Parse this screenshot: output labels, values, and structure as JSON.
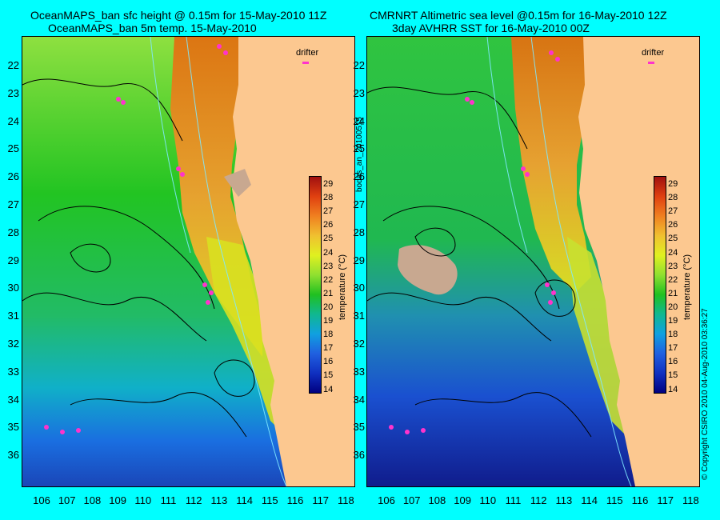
{
  "titles": {
    "left_line1": "OceanMAPS_ban sfc height @ 0.15m for 15-May-2010 11Z",
    "left_line2": "OceanMAPS_ban 5m temp. 15-May-2010",
    "right_line1": "CMRNRT Altimetric sea level  @0.15m  for 16-May-2010 12Z",
    "right_line2": "3day AVHRR SST for 16-May-2010 00Z"
  },
  "latitudes": [
    "22",
    "23",
    "24",
    "25",
    "26",
    "27",
    "28",
    "29",
    "30",
    "31",
    "32",
    "33",
    "34",
    "35",
    "36"
  ],
  "longitudes": [
    "106",
    "107",
    "108",
    "109",
    "110",
    "111",
    "112",
    "113",
    "114",
    "115",
    "116",
    "117",
    "118"
  ],
  "middle_label": "bodas_an_20100515",
  "copyright": "© Copyright CSIRO 2010   04-Aug-2010 03:36:27",
  "drifter_label": "drifter",
  "colorbar": {
    "title": "temperature (°C)",
    "ticks": [
      "29",
      "28",
      "27",
      "26",
      "25",
      "24",
      "23",
      "22",
      "21",
      "20",
      "19",
      "18",
      "17",
      "16",
      "15",
      "14"
    ]
  },
  "colors": {
    "background": "#00ffff",
    "land": "#fcc890",
    "missing": "#c8a890",
    "drifter": "#ff33cc"
  }
}
